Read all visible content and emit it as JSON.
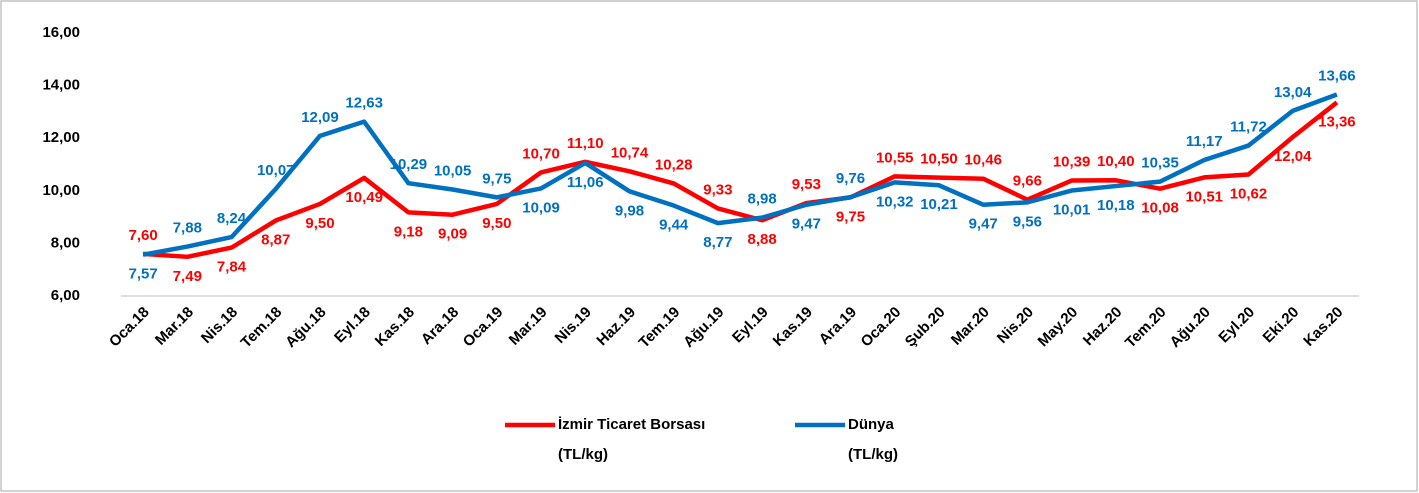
{
  "chart_data": {
    "type": "line",
    "categories": [
      "Oca.18",
      "Mar.18",
      "Nis.18",
      "Tem.18",
      "Ağu.18",
      "Eyl.18",
      "Kas.18",
      "Ara.18",
      "Oca.19",
      "Mar.19",
      "Nis.19",
      "Haz.19",
      "Tem.19",
      "Ağu.19",
      "Eyl.19",
      "Kas.19",
      "Ara.19",
      "Oca.20",
      "Şub.20",
      "Mar.20",
      "Nis.20",
      "May.20",
      "Haz.20",
      "Tem.20",
      "Ağu.20",
      "Eyl.20",
      "Eki.20",
      "Kas.20"
    ],
    "series": [
      {
        "name": "İzmir Ticaret Borsası",
        "unit": "(TL/kg)",
        "color": "#ff0000",
        "values": [
          7.6,
          7.49,
          7.84,
          8.87,
          9.5,
          10.49,
          9.18,
          9.09,
          9.5,
          10.7,
          11.1,
          10.74,
          10.28,
          9.33,
          8.88,
          9.53,
          9.75,
          10.55,
          10.5,
          10.46,
          9.66,
          10.39,
          10.4,
          10.08,
          10.51,
          10.62,
          12.04,
          13.36
        ],
        "value_labels": [
          "7,60",
          "7,49",
          "7,84",
          "8,87",
          "9,50",
          "10,49",
          "9,18",
          "9,09",
          "9,50",
          "10,70",
          "11,10",
          "10,74",
          "10,28",
          "9,33",
          "8,88",
          "9,53",
          "9,75",
          "10,55",
          "10,50",
          "10,46",
          "9,66",
          "10,39",
          "10,40",
          "10,08",
          "10,51",
          "10,62",
          "12,04",
          "13,36"
        ]
      },
      {
        "name": "Dünya",
        "unit": "(TL/kg)",
        "color": "#0070c0",
        "values": [
          7.57,
          7.88,
          8.24,
          10.07,
          12.09,
          12.63,
          10.29,
          10.05,
          9.75,
          10.09,
          11.06,
          9.98,
          9.44,
          8.77,
          8.98,
          9.47,
          9.76,
          10.32,
          10.21,
          9.47,
          9.56,
          10.01,
          10.18,
          10.35,
          11.17,
          11.72,
          13.04,
          13.66
        ],
        "value_labels": [
          "7,57",
          "7,88",
          "8,24",
          "10,07",
          "12,09",
          "12,63",
          "10,29",
          "10,05",
          "9,75",
          "10,09",
          "11,06",
          "9,98",
          "9,44",
          "8,77",
          "8,98",
          "9,47",
          "9,76",
          "10,32",
          "10,21",
          "9,47",
          "9,56",
          "10,01",
          "10,18",
          "10,35",
          "11,17",
          "11,72",
          "13,04",
          "13,66"
        ]
      }
    ],
    "ylim": [
      6,
      16
    ],
    "yticks": [
      {
        "value": 6,
        "label": "6,00"
      },
      {
        "value": 8,
        "label": "8,00"
      },
      {
        "value": 10,
        "label": "10,00"
      },
      {
        "value": 12,
        "label": "12,00"
      },
      {
        "value": 14,
        "label": "14,00"
      },
      {
        "value": 16,
        "label": "16,00"
      }
    ],
    "grid": false,
    "legend": "bottom"
  }
}
